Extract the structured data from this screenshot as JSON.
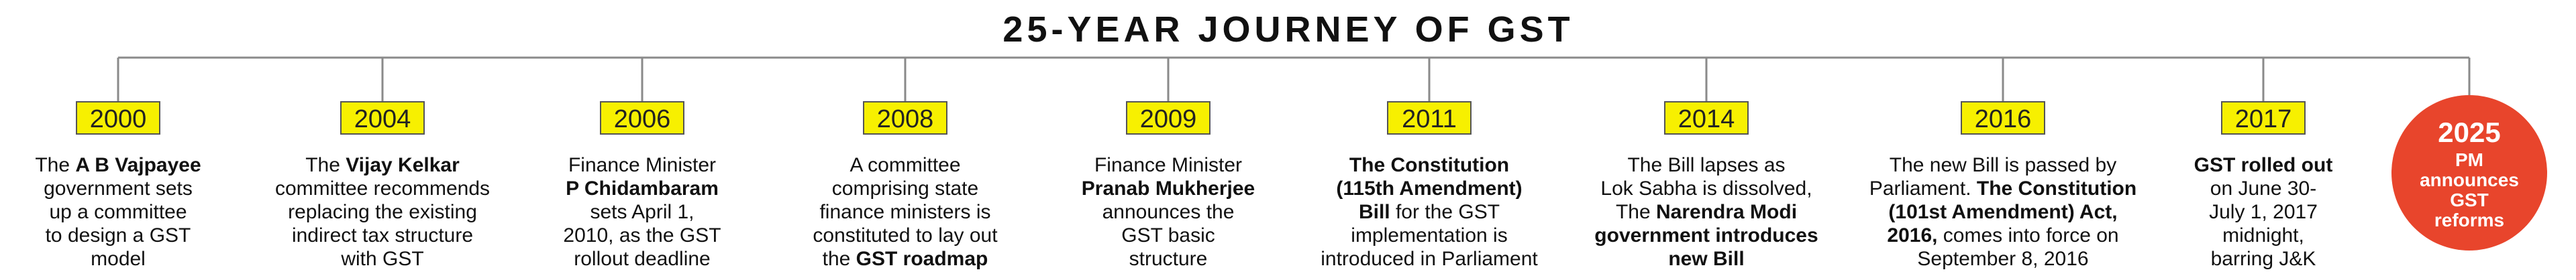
{
  "title": "25-YEAR JOURNEY OF GST",
  "events": [
    {
      "year": "2000",
      "lines": [
        [
          "The ",
          {
            "bold": "A B Vajpayee"
          }
        ],
        [
          "government sets"
        ],
        [
          "up a committee"
        ],
        [
          "to design a GST"
        ],
        [
          "model"
        ]
      ]
    },
    {
      "year": "2004",
      "lines": [
        [
          "The ",
          {
            "bold": "Vijay Kelkar"
          }
        ],
        [
          "committee recommends"
        ],
        [
          "replacing the existing"
        ],
        [
          "indirect tax structure"
        ],
        [
          "with GST"
        ]
      ]
    },
    {
      "year": "2006",
      "lines": [
        [
          "Finance Minister"
        ],
        [
          {
            "bold": "P Chidambaram"
          }
        ],
        [
          "sets April 1,"
        ],
        [
          "2010, as the GST"
        ],
        [
          "rollout deadline"
        ]
      ]
    },
    {
      "year": "2008",
      "lines": [
        [
          "A committee"
        ],
        [
          "comprising state"
        ],
        [
          "finance ministers is"
        ],
        [
          "constituted to lay out"
        ],
        [
          "the ",
          {
            "bold": "GST roadmap"
          }
        ]
      ]
    },
    {
      "year": "2009",
      "lines": [
        [
          "Finance Minister"
        ],
        [
          {
            "bold": "Pranab Mukherjee"
          }
        ],
        [
          "announces the"
        ],
        [
          "GST basic"
        ],
        [
          "structure"
        ]
      ]
    },
    {
      "year": "2011",
      "lines": [
        [
          {
            "bold": "The Constitution"
          }
        ],
        [
          {
            "bold": "(115th Amendment)"
          }
        ],
        [
          {
            "bold": "Bill"
          },
          " for the GST"
        ],
        [
          "implementation is"
        ],
        [
          "introduced in Parliament"
        ]
      ]
    },
    {
      "year": "2014",
      "lines": [
        [
          "The Bill lapses as"
        ],
        [
          "Lok Sabha is dissolved,"
        ],
        [
          "The ",
          {
            "bold": "Narendra Modi"
          }
        ],
        [
          {
            "bold": "government introduces"
          }
        ],
        [
          {
            "bold": "new Bill"
          }
        ]
      ]
    },
    {
      "year": "2016",
      "lines": [
        [
          "The new Bill is passed by"
        ],
        [
          "Parliament. ",
          {
            "bold": "The Constitution"
          }
        ],
        [
          {
            "bold": "(101st Amendment) Act,"
          }
        ],
        [
          {
            "bold": "2016,"
          },
          " comes into force on"
        ],
        [
          "September 8, 2016"
        ]
      ]
    },
    {
      "year": "2017",
      "lines": [
        [
          {
            "bold": "GST rolled out"
          }
        ],
        [
          "on June 30-"
        ],
        [
          "July 1, 2017"
        ],
        [
          "midnight,"
        ],
        [
          "barring J&K"
        ]
      ]
    }
  ],
  "final": {
    "year": "2025",
    "lines": [
      "PM",
      "announces",
      "GST",
      "reforms"
    ]
  }
}
